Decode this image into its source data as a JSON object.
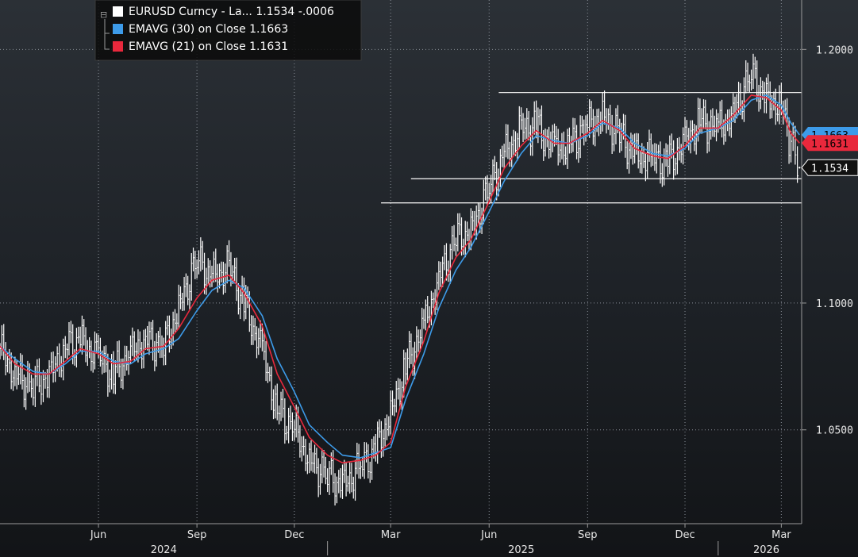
{
  "chart_data": {
    "type": "line",
    "title": "",
    "xlabel": "",
    "ylabel": "",
    "x_range": [
      "2024-03-01",
      "2026-03-20"
    ],
    "ylim": [
      1.013,
      1.2195
    ],
    "grid": true,
    "grid_style": "dotted",
    "legend_position": "top-left",
    "y_ticks": [
      "1.0500",
      "1.1000",
      "1.2000"
    ],
    "y_tick_values": [
      1.05,
      1.1,
      1.2
    ],
    "x_month_labels": [
      {
        "label": "Jun",
        "date": "2024-06-01"
      },
      {
        "label": "Sep",
        "date": "2024-09-01"
      },
      {
        "label": "Dec",
        "date": "2024-12-01"
      },
      {
        "label": "Mar",
        "date": "2025-03-01"
      },
      {
        "label": "Jun",
        "date": "2025-06-01"
      },
      {
        "label": "Sep",
        "date": "2025-09-01"
      },
      {
        "label": "Dec",
        "date": "2025-12-01"
      },
      {
        "label": "Mar",
        "date": "2026-03-01"
      }
    ],
    "x_year_labels": [
      {
        "label": "2024",
        "date": "2024-08-01"
      },
      {
        "label": "2025",
        "date": "2025-07-01"
      },
      {
        "label": "2026",
        "date": "2026-02-15"
      }
    ],
    "x_year_dividers": [
      "2025-01-01",
      "2026-01-01"
    ],
    "horizontal_lines": [
      {
        "start": "2025-06-10",
        "end": "2026-03-20",
        "y": 1.183
      },
      {
        "start": "2025-03-20",
        "end": "2026-03-20",
        "y": 1.149
      },
      {
        "start": "2025-02-20",
        "end": "2026-03-20",
        "y": 1.1395
      }
    ],
    "series": [
      {
        "name": "EURUSD Curncy - La...",
        "legend_value": "1.1534",
        "legend_change": "-.0006",
        "last_tag": "1.1534",
        "color": "#ffffff",
        "kind": "bars",
        "x": [
          "2024-03-01",
          "2024-03-15",
          "2024-04-01",
          "2024-04-16",
          "2024-05-01",
          "2024-05-15",
          "2024-06-01",
          "2024-06-15",
          "2024-07-01",
          "2024-07-15",
          "2024-08-01",
          "2024-08-15",
          "2024-09-01",
          "2024-09-15",
          "2024-10-01",
          "2024-10-15",
          "2024-11-01",
          "2024-11-15",
          "2024-12-01",
          "2024-12-15",
          "2025-01-01",
          "2025-01-15",
          "2025-02-01",
          "2025-02-15",
          "2025-03-01",
          "2025-03-15",
          "2025-04-01",
          "2025-04-15",
          "2025-05-01",
          "2025-05-15",
          "2025-06-01",
          "2025-06-15",
          "2025-07-01",
          "2025-07-15",
          "2025-08-01",
          "2025-08-15",
          "2025-09-01",
          "2025-09-15",
          "2025-10-01",
          "2025-10-15",
          "2025-11-01",
          "2025-11-15",
          "2025-12-01",
          "2025-12-15",
          "2026-01-01",
          "2026-01-15",
          "2026-02-01",
          "2026-02-15",
          "2026-03-01",
          "2026-03-10",
          "2026-03-18"
        ],
        "y": [
          1.082,
          1.072,
          1.067,
          1.071,
          1.083,
          1.085,
          1.078,
          1.072,
          1.08,
          1.086,
          1.082,
          1.098,
          1.117,
          1.11,
          1.114,
          1.1,
          1.08,
          1.058,
          1.05,
          1.038,
          1.032,
          1.028,
          1.035,
          1.042,
          1.056,
          1.075,
          1.09,
          1.11,
          1.125,
          1.128,
          1.145,
          1.158,
          1.168,
          1.17,
          1.16,
          1.163,
          1.169,
          1.174,
          1.166,
          1.158,
          1.157,
          1.155,
          1.163,
          1.172,
          1.168,
          1.175,
          1.19,
          1.18,
          1.178,
          1.162,
          1.1534
        ]
      },
      {
        "name": "EMAVG (30)  on Close",
        "legend_value": "1.1663",
        "last_tag": "1.1663",
        "color": "#3d9be9",
        "kind": "line",
        "x": [
          "2024-03-01",
          "2024-03-15",
          "2024-04-01",
          "2024-04-16",
          "2024-05-01",
          "2024-05-15",
          "2024-06-01",
          "2024-06-15",
          "2024-07-01",
          "2024-07-15",
          "2024-08-01",
          "2024-08-15",
          "2024-09-01",
          "2024-09-15",
          "2024-10-01",
          "2024-10-15",
          "2024-11-01",
          "2024-11-15",
          "2024-12-01",
          "2024-12-15",
          "2025-01-01",
          "2025-01-15",
          "2025-02-01",
          "2025-02-15",
          "2025-03-01",
          "2025-03-15",
          "2025-04-01",
          "2025-04-15",
          "2025-05-01",
          "2025-05-15",
          "2025-06-01",
          "2025-06-15",
          "2025-07-01",
          "2025-07-15",
          "2025-08-01",
          "2025-08-15",
          "2025-09-01",
          "2025-09-15",
          "2025-10-01",
          "2025-10-15",
          "2025-11-01",
          "2025-11-15",
          "2025-12-01",
          "2025-12-15",
          "2026-01-01",
          "2026-01-15",
          "2026-02-01",
          "2026-02-15",
          "2026-03-01",
          "2026-03-10",
          "2026-03-18"
        ],
        "y": [
          1.083,
          1.078,
          1.073,
          1.072,
          1.076,
          1.081,
          1.081,
          1.077,
          1.076,
          1.08,
          1.082,
          1.086,
          1.097,
          1.105,
          1.109,
          1.106,
          1.095,
          1.078,
          1.065,
          1.052,
          1.045,
          1.04,
          1.039,
          1.041,
          1.043,
          1.062,
          1.08,
          1.098,
          1.113,
          1.122,
          1.136,
          1.148,
          1.159,
          1.166,
          1.164,
          1.163,
          1.166,
          1.171,
          1.169,
          1.163,
          1.159,
          1.158,
          1.161,
          1.167,
          1.169,
          1.172,
          1.18,
          1.182,
          1.178,
          1.171,
          1.1663
        ]
      },
      {
        "name": "EMAVG (21)  on Close",
        "legend_value": "1.1631",
        "last_tag": "1.1631",
        "color": "#e8283c",
        "kind": "line",
        "x": [
          "2024-03-01",
          "2024-03-15",
          "2024-04-01",
          "2024-04-16",
          "2024-05-01",
          "2024-05-15",
          "2024-06-01",
          "2024-06-15",
          "2024-07-01",
          "2024-07-15",
          "2024-08-01",
          "2024-08-15",
          "2024-09-01",
          "2024-09-15",
          "2024-10-01",
          "2024-10-15",
          "2024-11-01",
          "2024-11-15",
          "2024-12-01",
          "2024-12-15",
          "2025-01-01",
          "2025-01-15",
          "2025-02-01",
          "2025-02-15",
          "2025-03-01",
          "2025-03-15",
          "2025-04-01",
          "2025-04-15",
          "2025-05-01",
          "2025-05-15",
          "2025-06-01",
          "2025-06-15",
          "2025-07-01",
          "2025-07-15",
          "2025-08-01",
          "2025-08-15",
          "2025-09-01",
          "2025-09-15",
          "2025-10-01",
          "2025-10-15",
          "2025-11-01",
          "2025-11-15",
          "2025-12-01",
          "2025-12-15",
          "2026-01-01",
          "2026-01-15",
          "2026-02-01",
          "2026-02-15",
          "2026-03-01",
          "2026-03-10",
          "2026-03-18"
        ],
        "y": [
          1.083,
          1.076,
          1.072,
          1.072,
          1.077,
          1.082,
          1.08,
          1.076,
          1.077,
          1.082,
          1.083,
          1.09,
          1.102,
          1.109,
          1.111,
          1.104,
          1.091,
          1.072,
          1.059,
          1.047,
          1.04,
          1.037,
          1.038,
          1.04,
          1.045,
          1.067,
          1.085,
          1.104,
          1.118,
          1.125,
          1.14,
          1.153,
          1.162,
          1.168,
          1.163,
          1.163,
          1.167,
          1.172,
          1.168,
          1.161,
          1.158,
          1.157,
          1.162,
          1.169,
          1.169,
          1.174,
          1.182,
          1.181,
          1.176,
          1.167,
          1.1631
        ]
      }
    ]
  }
}
